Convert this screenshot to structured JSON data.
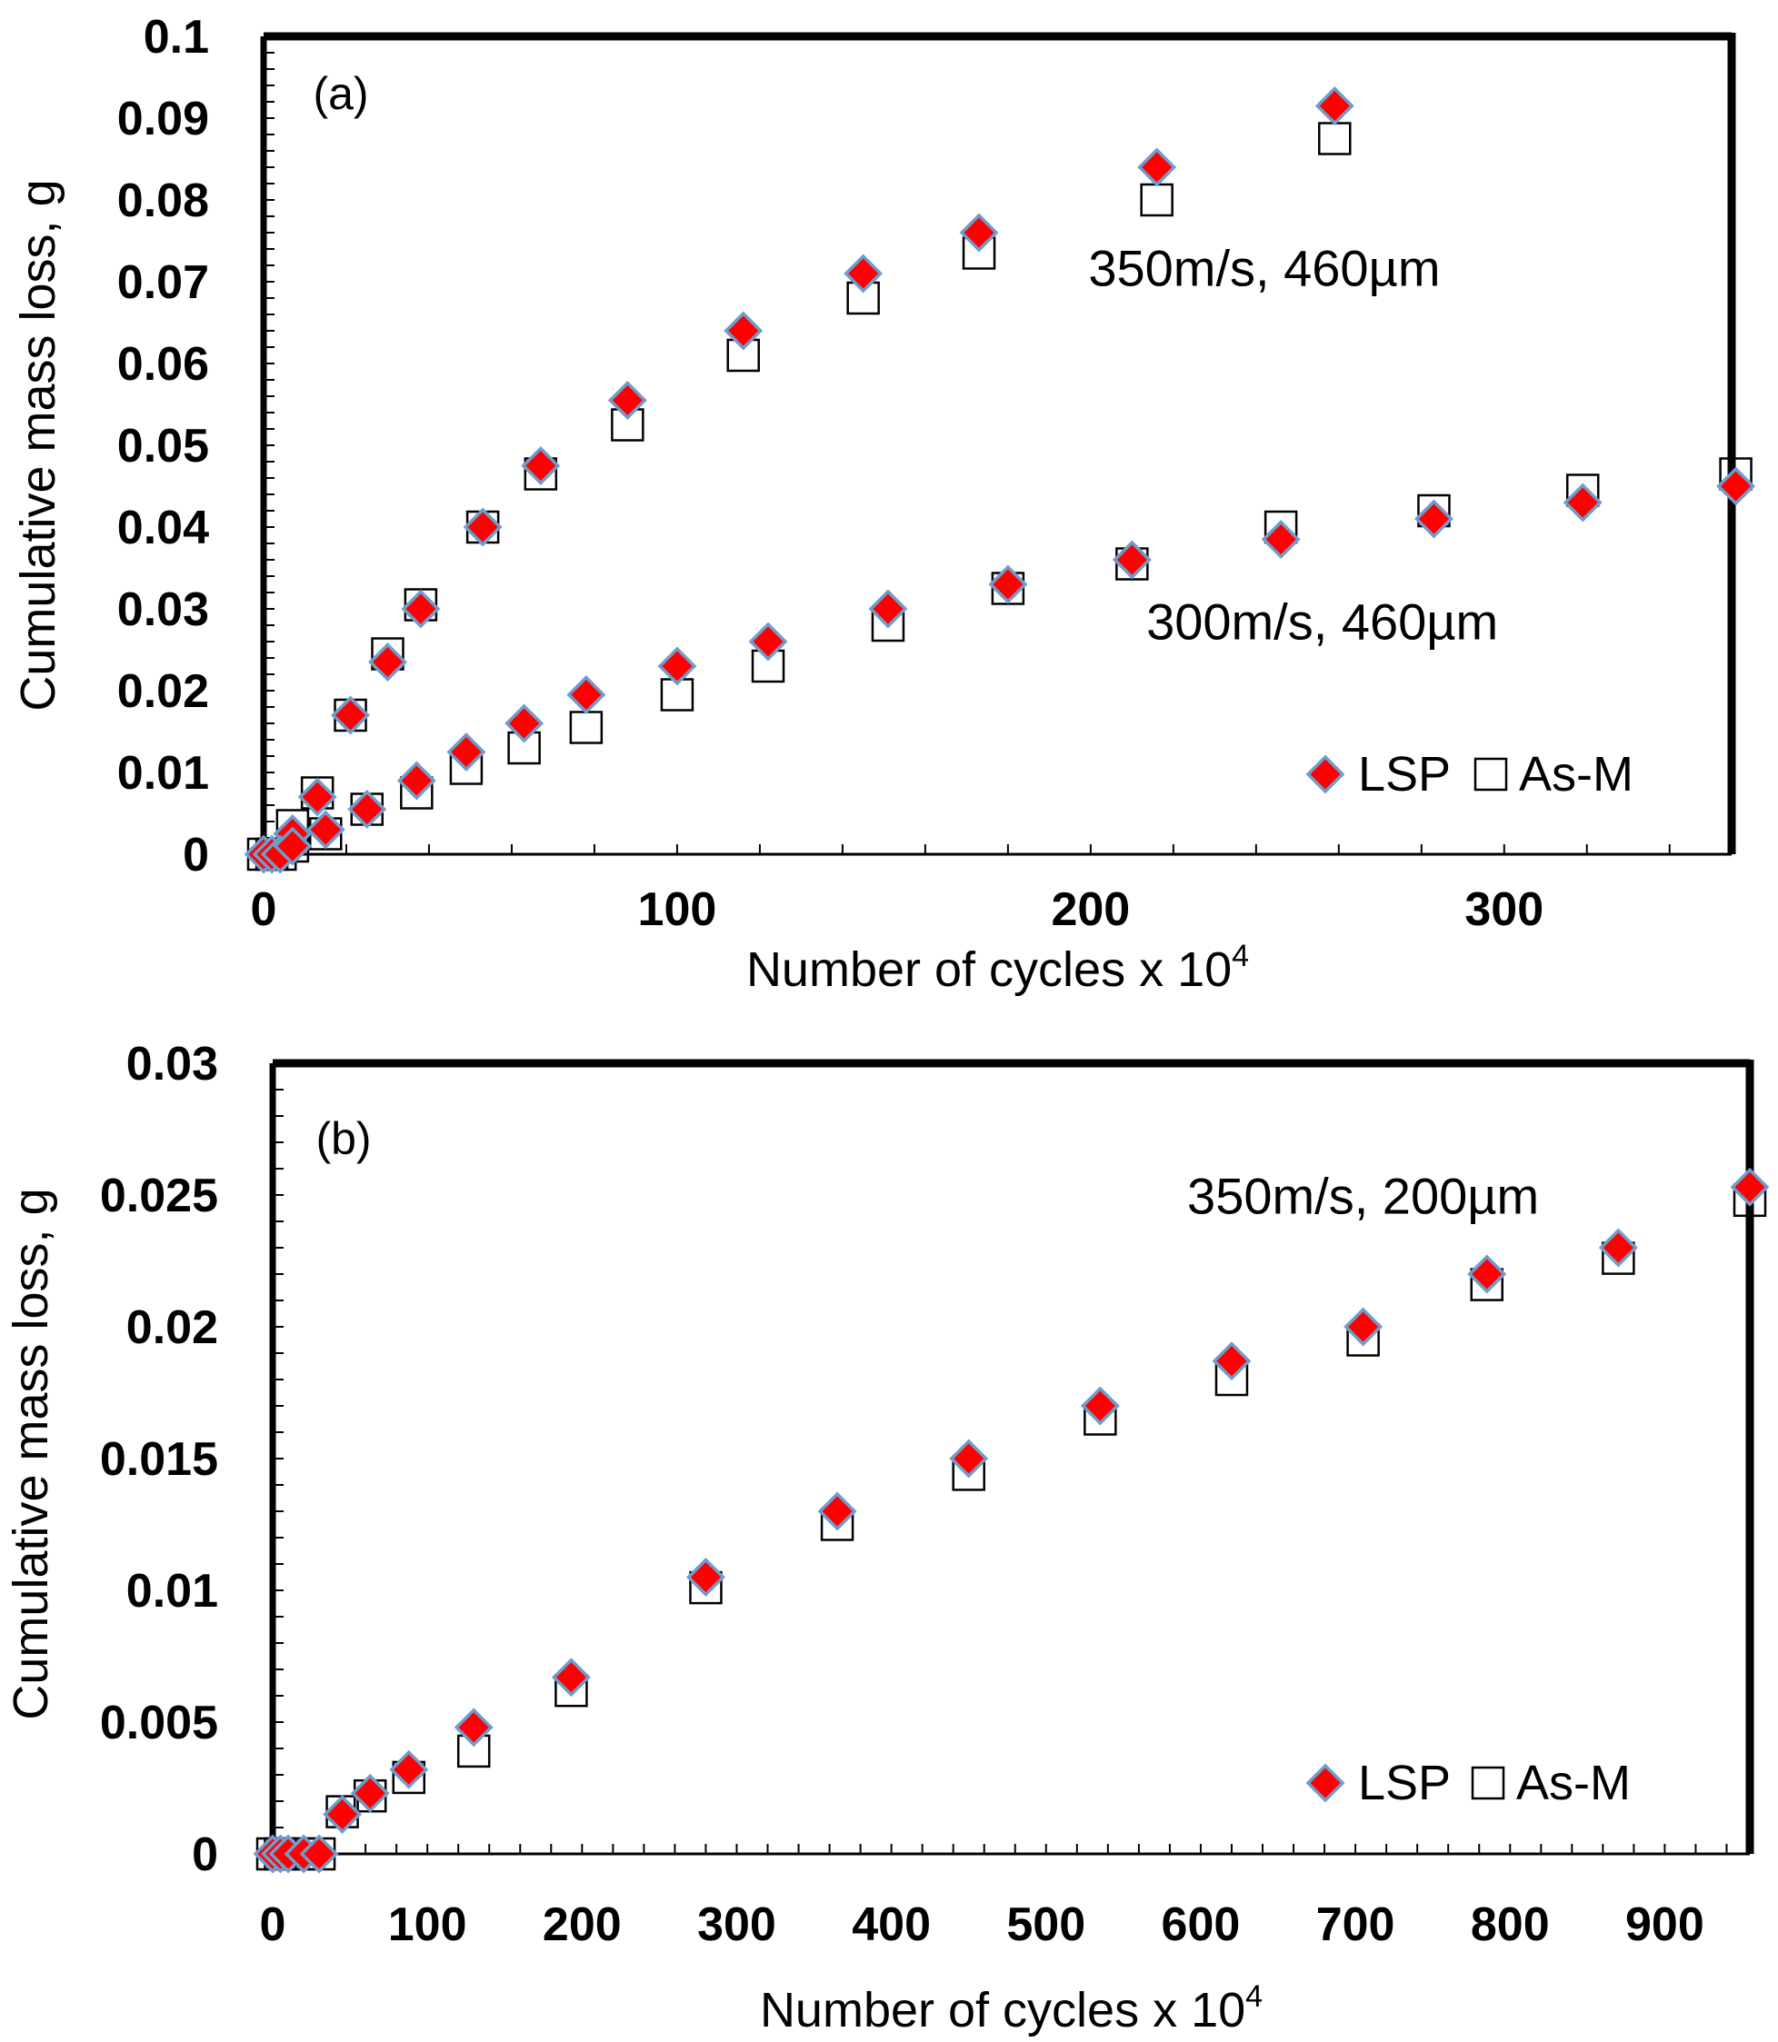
{
  "colors": {
    "lsp_fill": "#ff0000",
    "lsp_edge": "#6f9ccc",
    "asm_edge": "#000000",
    "frame": "#000000"
  },
  "chart_data": [
    {
      "type": "scatter",
      "panel_label": "(a)",
      "xlabel": "Number of cycles x 10",
      "xlabel_sup": "4",
      "ylabel": "Cumulative mass loss, g",
      "xlim": [
        0,
        355
      ],
      "ylim": [
        0,
        0.1
      ],
      "x_ticks": [
        0,
        100,
        200,
        300
      ],
      "y_ticks": [
        0,
        0.01,
        0.02,
        0.03,
        0.04,
        0.05,
        0.06,
        0.07,
        0.08,
        0.09,
        0.1
      ],
      "y_tick_labels": [
        "0",
        "0.01",
        "0.02",
        "0.03",
        "0.04",
        "0.05",
        "0.06",
        "0.07",
        "0.08",
        "0.09",
        "0.1"
      ],
      "legend": [
        {
          "marker": "diamond",
          "label": "LSP"
        },
        {
          "marker": "square",
          "label": "As-M"
        }
      ],
      "annotations": [
        {
          "text": "350m/s, 460µm",
          "x": 242,
          "y": 0.0695
        },
        {
          "text": "300m/s, 460µm",
          "x": 256,
          "y": 0.0263
        }
      ],
      "series": [
        {
          "name": "LSP 350m/s, 460µm",
          "marker": "diamond",
          "x": [
            0,
            2,
            7,
            13,
            21,
            30,
            38,
            53,
            67,
            88,
            116,
            145,
            173,
            216,
            259
          ],
          "y": [
            0,
            0,
            0.0025,
            0.007,
            0.017,
            0.0235,
            0.03,
            0.04,
            0.0475,
            0.0555,
            0.064,
            0.071,
            0.076,
            0.084,
            0.0915
          ]
        },
        {
          "name": "As-M 350m/s, 460µm",
          "marker": "square",
          "x": [
            0,
            2,
            7,
            13,
            21,
            30,
            38,
            53,
            67,
            88,
            116,
            145,
            173,
            216,
            259
          ],
          "y": [
            0,
            0,
            0.0035,
            0.0075,
            0.017,
            0.0245,
            0.0305,
            0.04,
            0.0465,
            0.0525,
            0.061,
            0.068,
            0.0735,
            0.08,
            0.0875
          ]
        },
        {
          "name": "LSP 300m/s, 460µm",
          "marker": "diamond",
          "x": [
            4,
            7,
            15,
            25,
            37,
            49,
            63,
            78,
            100,
            122,
            151,
            180,
            210,
            246,
            283,
            319,
            356
          ],
          "y": [
            0,
            0.001,
            0.003,
            0.0055,
            0.009,
            0.0125,
            0.016,
            0.0195,
            0.023,
            0.026,
            0.03,
            0.033,
            0.036,
            0.0385,
            0.041,
            0.043,
            0.045
          ]
        },
        {
          "name": "As-M 300m/s, 460µm",
          "marker": "square",
          "x": [
            4,
            7,
            15,
            25,
            37,
            49,
            63,
            78,
            100,
            122,
            151,
            180,
            210,
            246,
            283,
            319,
            356
          ],
          "y": [
            0,
            0.001,
            0.0025,
            0.0055,
            0.0075,
            0.0105,
            0.013,
            0.0155,
            0.0195,
            0.023,
            0.028,
            0.0325,
            0.0355,
            0.04,
            0.042,
            0.0445,
            0.0465
          ]
        }
      ]
    },
    {
      "type": "scatter",
      "panel_label": "(b)",
      "xlabel": "Number of cycles x 10",
      "xlabel_sup": "4",
      "ylabel": "Cumulative mass loss, g",
      "xlim": [
        0,
        955
      ],
      "ylim": [
        0,
        0.03
      ],
      "x_ticks": [
        0,
        100,
        200,
        300,
        400,
        500,
        600,
        700,
        800,
        900
      ],
      "y_ticks": [
        0,
        0.005,
        0.01,
        0.015,
        0.02,
        0.025,
        0.03
      ],
      "y_tick_labels": [
        "0",
        "0.005",
        "0.01",
        "0.015",
        "0.02",
        "0.025",
        "0.03"
      ],
      "legend": [
        {
          "marker": "diamond",
          "label": "LSP"
        },
        {
          "marker": "square",
          "label": "As-M"
        }
      ],
      "annotations": [
        {
          "text": "350m/s, 200µm",
          "x": 705,
          "y": 0.0243
        }
      ],
      "series": [
        {
          "name": "LSP 350m/s, 200µm",
          "marker": "diamond",
          "x": [
            0,
            5,
            10,
            20,
            30,
            45,
            63,
            88,
            130,
            193,
            280,
            365,
            450,
            535,
            620,
            705,
            785,
            870,
            955
          ],
          "y": [
            0,
            0,
            0,
            0,
            0,
            0.0015,
            0.0023,
            0.0032,
            0.0048,
            0.0067,
            0.0105,
            0.013,
            0.015,
            0.017,
            0.0187,
            0.02,
            0.022,
            0.023,
            0.0253
          ]
        },
        {
          "name": "As-M 350m/s, 200µm",
          "marker": "square",
          "x": [
            0,
            5,
            10,
            20,
            30,
            45,
            63,
            88,
            130,
            193,
            280,
            365,
            450,
            535,
            620,
            705,
            785,
            870,
            955
          ],
          "y": [
            0,
            0,
            0,
            0,
            0,
            0.0016,
            0.0022,
            0.0029,
            0.0039,
            0.0062,
            0.0101,
            0.0125,
            0.0144,
            0.0165,
            0.018,
            0.0195,
            0.0216,
            0.0226,
            0.0248
          ]
        }
      ]
    }
  ]
}
